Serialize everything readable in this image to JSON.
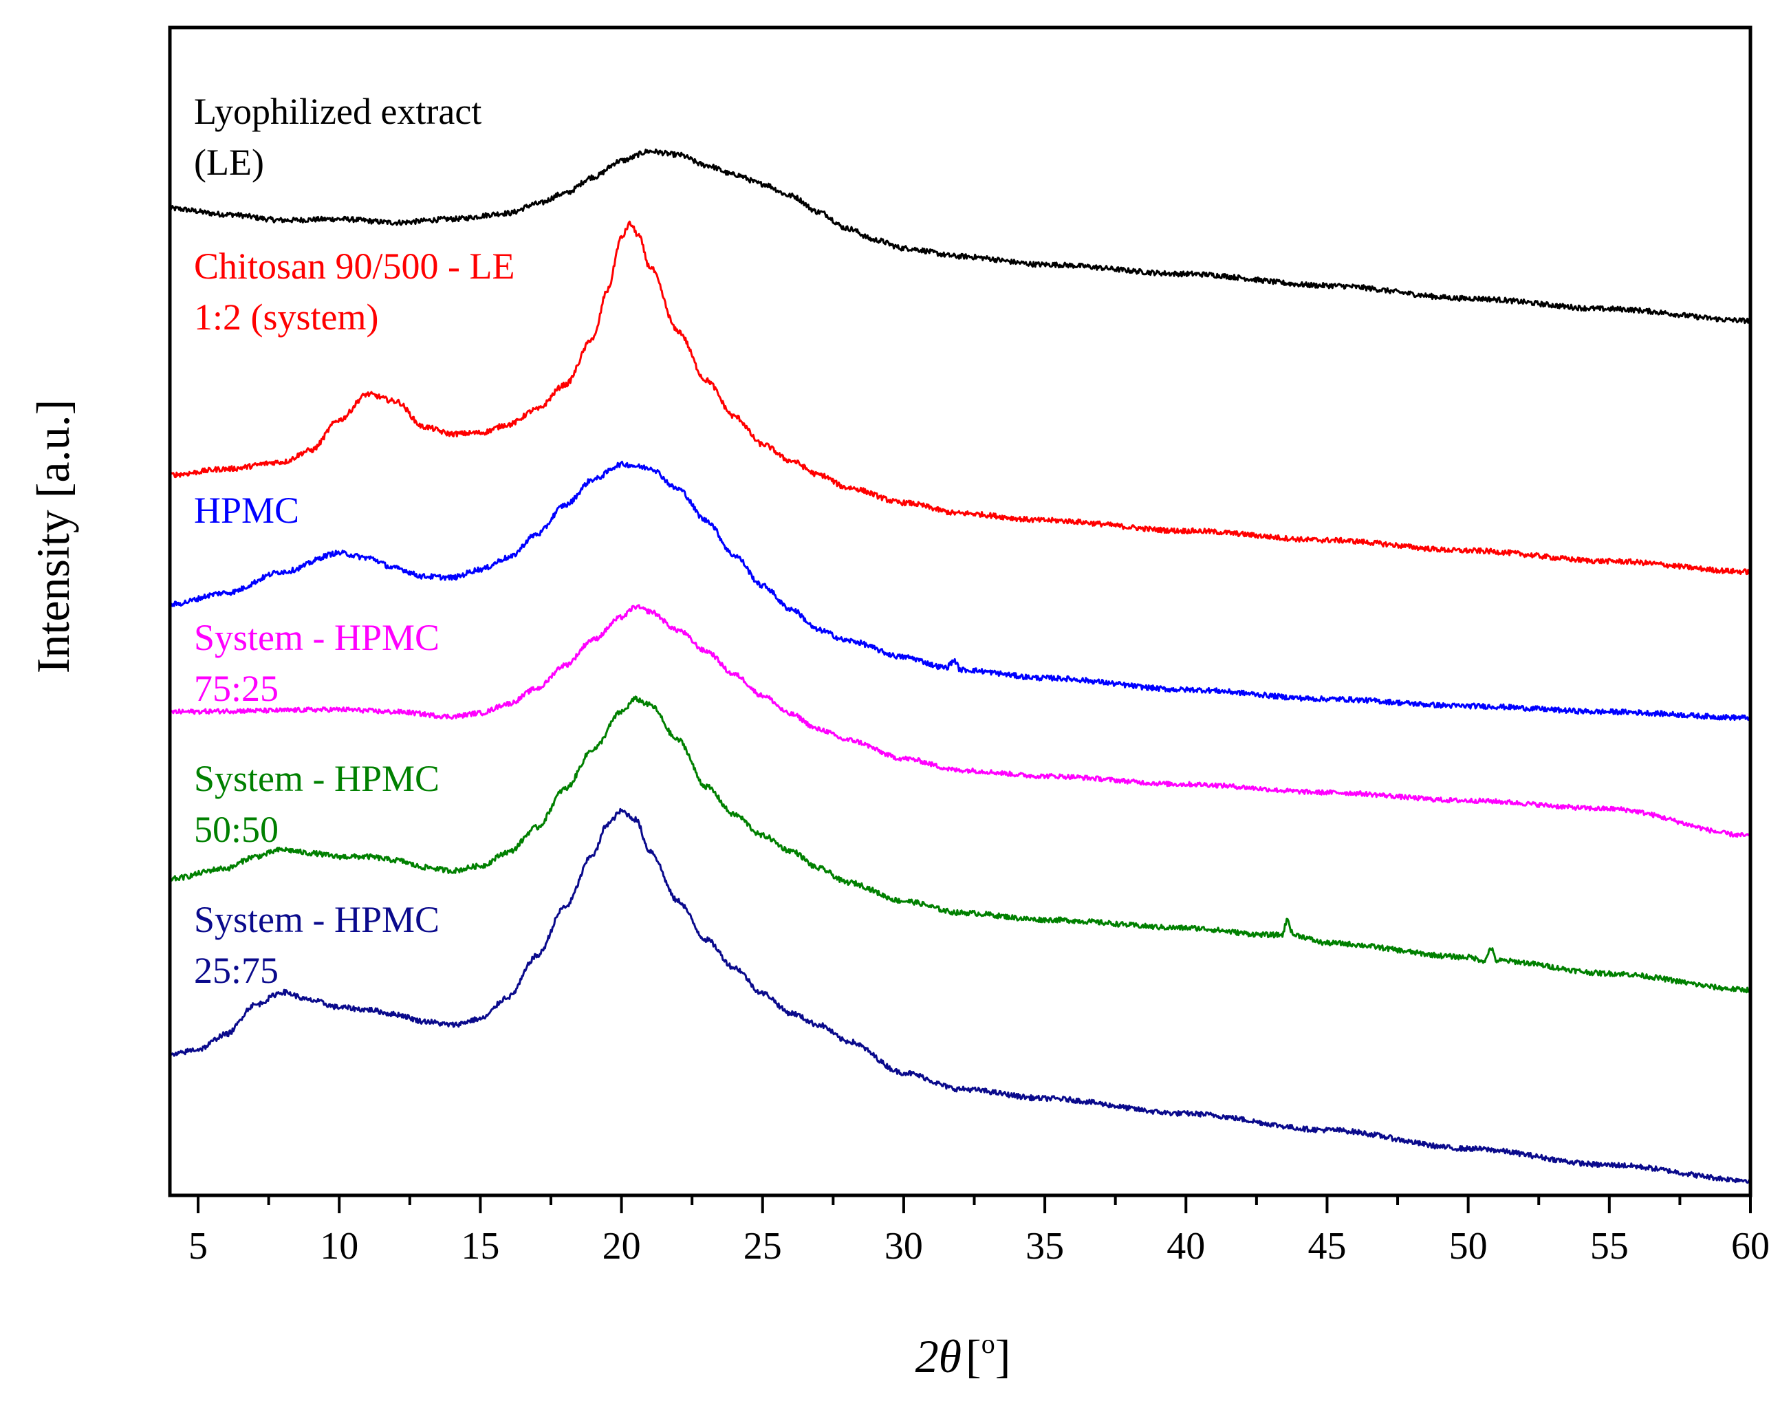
{
  "chart_data": {
    "type": "line",
    "title": "",
    "xlabel": "2θ [°]",
    "xlabel_parts": {
      "var": "2θ",
      "bracket_open": "[",
      "unit": "o",
      "bracket_close": "]"
    },
    "ylabel": "Intensity [a.u.]",
    "xlim": [
      4,
      60
    ],
    "ylim": [
      0,
      100
    ],
    "x_ticks": [
      5,
      10,
      15,
      20,
      25,
      30,
      35,
      40,
      45,
      50,
      55,
      60
    ],
    "x_minor_step": 2.5,
    "y_ticks_shown": false,
    "series": [
      {
        "name": "Lyophilized extract (LE)",
        "label_lines": [
          "Lyophilized extract",
          "(LE)"
        ],
        "color": "#000000",
        "points": [
          [
            4,
            84.5
          ],
          [
            6,
            84.0
          ],
          [
            8,
            83.5
          ],
          [
            10,
            83.6
          ],
          [
            12,
            83.3
          ],
          [
            14,
            83.6
          ],
          [
            16,
            84.1
          ],
          [
            17,
            84.9
          ],
          [
            18,
            85.8
          ],
          [
            19,
            87.2
          ],
          [
            20,
            88.6
          ],
          [
            21,
            89.4
          ],
          [
            22,
            89.1
          ],
          [
            23,
            88.2
          ],
          [
            24,
            87.4
          ],
          [
            25,
            86.6
          ],
          [
            26,
            85.6
          ],
          [
            27,
            84.2
          ],
          [
            28,
            82.8
          ],
          [
            29,
            81.8
          ],
          [
            30,
            81.1
          ],
          [
            32,
            80.4
          ],
          [
            35,
            79.7
          ],
          [
            40,
            78.9
          ],
          [
            45,
            77.9
          ],
          [
            50,
            76.8
          ],
          [
            55,
            75.9
          ],
          [
            60,
            74.9
          ]
        ],
        "noise": 0.22
      },
      {
        "name": "Chitosan 90/500 - LE 1:2 (system)",
        "label_lines": [
          "Chitosan 90/500 - LE",
          "1:2 (system)"
        ],
        "color": "#ff0000",
        "points": [
          [
            4,
            61.7
          ],
          [
            6,
            62.2
          ],
          [
            8,
            62.8
          ],
          [
            9,
            63.8
          ],
          [
            10,
            66.4
          ],
          [
            11,
            68.6
          ],
          [
            12,
            68.0
          ],
          [
            13,
            65.8
          ],
          [
            14,
            65.2
          ],
          [
            15,
            65.3
          ],
          [
            16,
            66.0
          ],
          [
            17,
            67.3
          ],
          [
            18,
            69.4
          ],
          [
            19,
            73.4
          ],
          [
            19.5,
            77.5
          ],
          [
            20,
            82.0
          ],
          [
            20.3,
            83.2
          ],
          [
            20.6,
            82.2
          ],
          [
            21,
            79.5
          ],
          [
            22,
            74.0
          ],
          [
            23,
            69.8
          ],
          [
            24,
            66.7
          ],
          [
            25,
            64.3
          ],
          [
            26,
            62.9
          ],
          [
            27,
            61.7
          ],
          [
            28,
            60.6
          ],
          [
            30,
            59.3
          ],
          [
            32,
            58.4
          ],
          [
            35,
            57.8
          ],
          [
            40,
            56.9
          ],
          [
            45,
            56.1
          ],
          [
            50,
            55.2
          ],
          [
            55,
            54.3
          ],
          [
            60,
            53.4
          ]
        ],
        "noise": 0.22
      },
      {
        "name": "HPMC",
        "label_lines": [
          "HPMC"
        ],
        "color": "#0000ff",
        "points": [
          [
            4,
            50.6
          ],
          [
            6,
            51.6
          ],
          [
            8,
            53.4
          ],
          [
            10,
            55.0
          ],
          [
            11,
            54.6
          ],
          [
            12,
            53.7
          ],
          [
            13,
            53.0
          ],
          [
            14,
            52.9
          ],
          [
            15,
            53.6
          ],
          [
            16,
            54.6
          ],
          [
            17,
            56.6
          ],
          [
            18,
            59.1
          ],
          [
            19,
            61.3
          ],
          [
            20,
            62.6
          ],
          [
            21,
            62.3
          ],
          [
            22,
            60.5
          ],
          [
            23,
            57.8
          ],
          [
            24,
            54.8
          ],
          [
            25,
            52.2
          ],
          [
            26,
            50.2
          ],
          [
            27,
            48.4
          ],
          [
            28,
            47.5
          ],
          [
            30,
            46.1
          ],
          [
            31.5,
            45.2
          ],
          [
            31.8,
            45.8
          ],
          [
            32,
            45.0
          ],
          [
            35,
            44.3
          ],
          [
            40,
            43.3
          ],
          [
            45,
            42.5
          ],
          [
            50,
            41.9
          ],
          [
            55,
            41.4
          ],
          [
            60,
            40.9
          ]
        ],
        "noise": 0.22
      },
      {
        "name": "System - HPMC 75:25",
        "label_lines": [
          "System - HPMC",
          "75:25"
        ],
        "color": "#ff00ff",
        "points": [
          [
            4,
            41.4
          ],
          [
            7,
            41.5
          ],
          [
            10,
            41.6
          ],
          [
            12,
            41.4
          ],
          [
            14,
            41.0
          ],
          [
            15,
            41.3
          ],
          [
            16,
            42.1
          ],
          [
            17,
            43.4
          ],
          [
            18,
            45.4
          ],
          [
            19,
            47.6
          ],
          [
            20,
            49.5
          ],
          [
            20.5,
            50.4
          ],
          [
            21,
            50.0
          ],
          [
            22,
            48.4
          ],
          [
            23,
            46.6
          ],
          [
            24,
            44.6
          ],
          [
            25,
            42.8
          ],
          [
            26,
            41.2
          ],
          [
            27,
            39.9
          ],
          [
            28,
            39.0
          ],
          [
            30,
            37.4
          ],
          [
            32,
            36.4
          ],
          [
            35,
            35.9
          ],
          [
            40,
            35.2
          ],
          [
            45,
            34.5
          ],
          [
            50,
            33.8
          ],
          [
            55,
            33.1
          ],
          [
            60,
            30.8
          ]
        ],
        "noise": 0.2
      },
      {
        "name": "System - HPMC 50:50",
        "label_lines": [
          "System - HPMC",
          "50:50"
        ],
        "color": "#008000",
        "points": [
          [
            4,
            27.1
          ],
          [
            6,
            28.0
          ],
          [
            7,
            29.0
          ],
          [
            8,
            29.6
          ],
          [
            9,
            29.3
          ],
          [
            10,
            29.0
          ],
          [
            11,
            29.0
          ],
          [
            12,
            28.7
          ],
          [
            13,
            28.1
          ],
          [
            14,
            27.8
          ],
          [
            15,
            28.2
          ],
          [
            16,
            29.4
          ],
          [
            17,
            31.5
          ],
          [
            18,
            34.8
          ],
          [
            19,
            38.2
          ],
          [
            20,
            41.4
          ],
          [
            20.5,
            42.5
          ],
          [
            21,
            42.0
          ],
          [
            22,
            39.0
          ],
          [
            23,
            35.0
          ],
          [
            24,
            32.6
          ],
          [
            25,
            30.8
          ],
          [
            26,
            29.5
          ],
          [
            27,
            28.0
          ],
          [
            28,
            26.8
          ],
          [
            30,
            25.2
          ],
          [
            32,
            24.2
          ],
          [
            35,
            23.6
          ],
          [
            40,
            22.9
          ],
          [
            43,
            22.3
          ],
          [
            43.4,
            22.3
          ],
          [
            43.6,
            23.6
          ],
          [
            43.8,
            22.3
          ],
          [
            45,
            21.6
          ],
          [
            50,
            20.4
          ],
          [
            50.6,
            20.1
          ],
          [
            50.8,
            21.2
          ],
          [
            51,
            20.1
          ],
          [
            55,
            19.0
          ],
          [
            60,
            17.6
          ]
        ],
        "noise": 0.22
      },
      {
        "name": "System - HPMC 25:75",
        "label_lines": [
          "System - HPMC",
          "25:75"
        ],
        "color": "#0a0a8c",
        "points": [
          [
            4,
            12.0
          ],
          [
            5,
            12.5
          ],
          [
            6,
            13.8
          ],
          [
            7,
            16.3
          ],
          [
            8,
            17.4
          ],
          [
            9,
            16.7
          ],
          [
            10,
            16.1
          ],
          [
            11,
            15.9
          ],
          [
            12,
            15.5
          ],
          [
            13,
            14.9
          ],
          [
            14,
            14.6
          ],
          [
            15,
            15.1
          ],
          [
            16,
            17.0
          ],
          [
            17,
            20.5
          ],
          [
            18,
            24.7
          ],
          [
            19,
            29.2
          ],
          [
            19.5,
            31.8
          ],
          [
            20,
            32.9
          ],
          [
            20.5,
            32.2
          ],
          [
            21,
            29.5
          ],
          [
            22,
            25.2
          ],
          [
            23,
            21.9
          ],
          [
            24,
            19.5
          ],
          [
            25,
            17.3
          ],
          [
            26,
            15.6
          ],
          [
            27,
            14.6
          ],
          [
            28,
            13.2
          ],
          [
            30,
            10.5
          ],
          [
            32,
            9.1
          ],
          [
            35,
            8.3
          ],
          [
            40,
            7.0
          ],
          [
            45,
            5.6
          ],
          [
            50,
            4.0
          ],
          [
            55,
            2.6
          ],
          [
            60,
            1.3
          ]
        ],
        "noise": 0.22
      }
    ]
  }
}
